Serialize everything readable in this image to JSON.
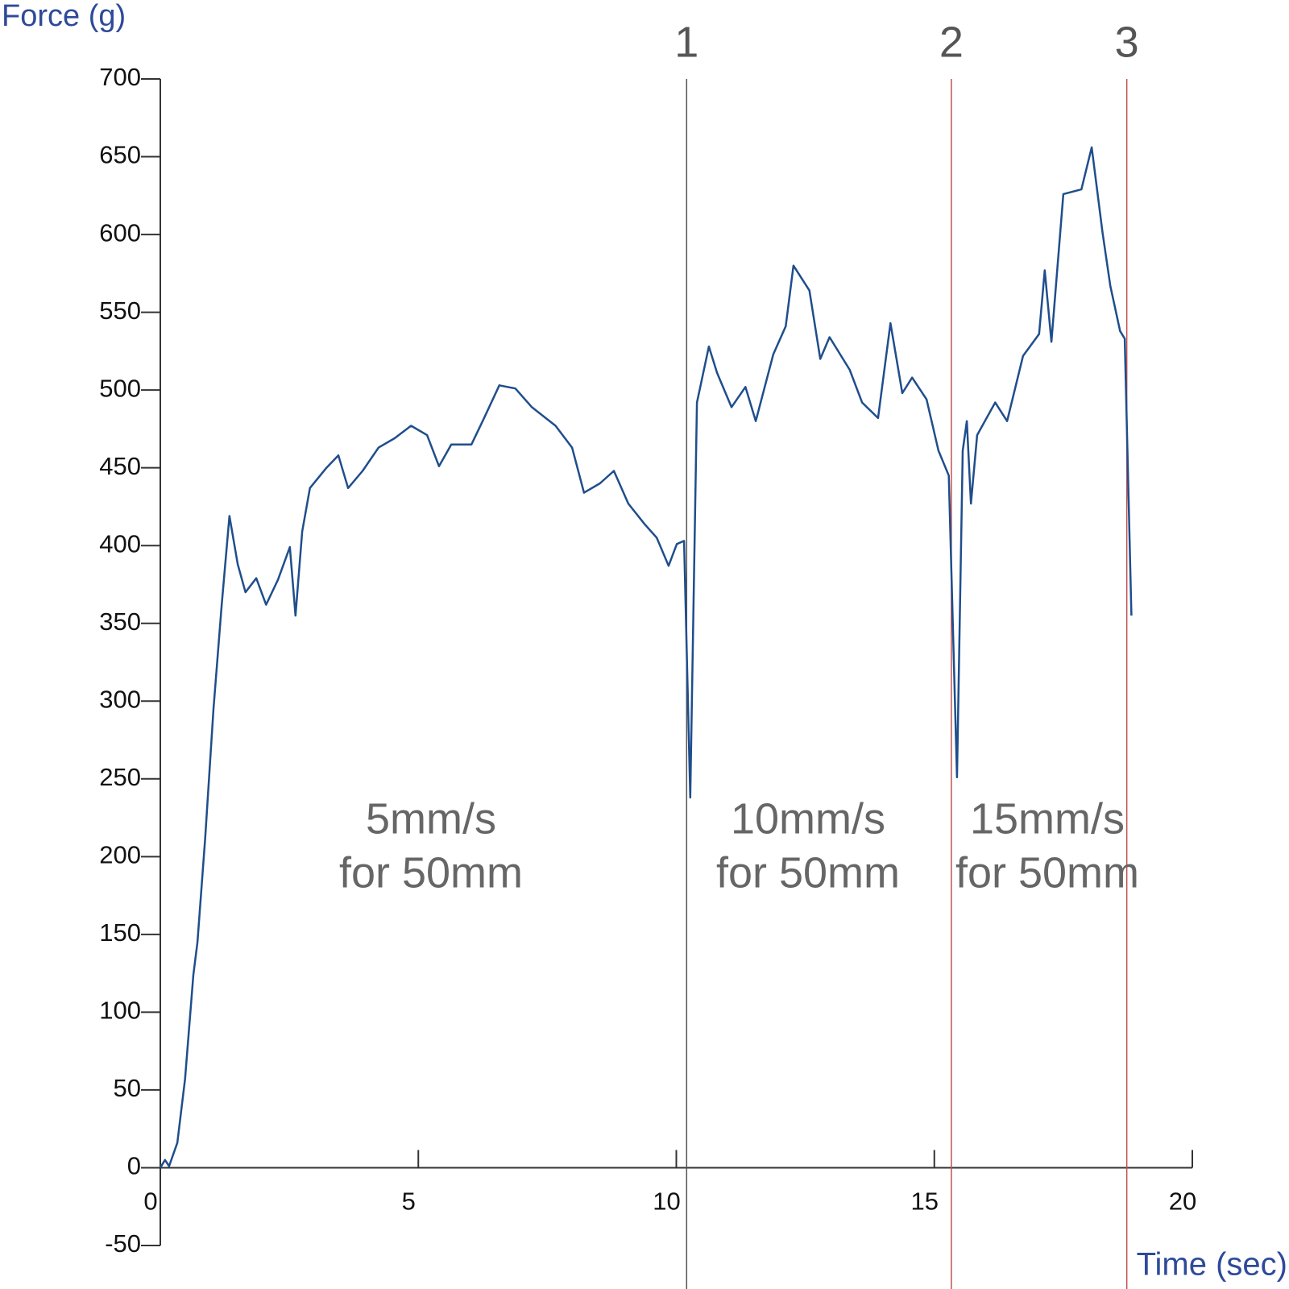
{
  "chart_data": {
    "type": "line",
    "xlabel": "Time (sec)",
    "ylabel": "Force (g)",
    "x": [
      0,
      0.09,
      0.17,
      0.33,
      0.48,
      0.64,
      0.72,
      0.87,
      1.03,
      1.19,
      1.34,
      1.5,
      1.65,
      1.86,
      2.05,
      2.28,
      2.51,
      2.62,
      2.75,
      2.9,
      3.22,
      3.45,
      3.64,
      3.92,
      4.23,
      4.54,
      4.86,
      5.17,
      5.4,
      5.64,
      6.03,
      6.26,
      6.57,
      6.88,
      7.2,
      7.66,
      7.98,
      8.21,
      8.52,
      8.79,
      9.07,
      9.38,
      9.62,
      9.85,
      10.01,
      10.15,
      10.27,
      10.4,
      10.63,
      10.79,
      11.07,
      11.34,
      11.54,
      11.88,
      12.12,
      12.27,
      12.58,
      12.79,
      12.97,
      13.36,
      13.6,
      13.91,
      14.15,
      14.38,
      14.57,
      14.85,
      15.08,
      15.28,
      15.44,
      15.55,
      15.63,
      15.71,
      15.83,
      16.18,
      16.41,
      16.72,
      17.03,
      17.14,
      17.27,
      17.5,
      17.85,
      18.05,
      18.26,
      18.41,
      18.6,
      18.69,
      18.82
    ],
    "series": [
      {
        "color": "#1f4e8c",
        "values": [
          0,
          5,
          1,
          16,
          57,
          124,
          145,
          212,
          295,
          362,
          419,
          388,
          370,
          379,
          362,
          378,
          399,
          355,
          409,
          437,
          450,
          458,
          437,
          448,
          463,
          469,
          477,
          471,
          451,
          465,
          465,
          481,
          503,
          501,
          489,
          477,
          463,
          434,
          440,
          448,
          427,
          414,
          405,
          387,
          401,
          403,
          238,
          492,
          528,
          511,
          489,
          502,
          480,
          523,
          541,
          580,
          564,
          520,
          534,
          513,
          492,
          482,
          543,
          498,
          508,
          494,
          461,
          445,
          251,
          461,
          480,
          427,
          471,
          492,
          480,
          522,
          536,
          577,
          531,
          626,
          629,
          656,
          601,
          567,
          538,
          533,
          355
        ]
      }
    ],
    "xlim": [
      0,
      20
    ],
    "xticks": [
      0,
      5,
      10,
      15,
      20
    ],
    "ylim": [
      -50,
      700
    ],
    "yticks": [
      -50,
      0,
      50,
      100,
      150,
      200,
      250,
      300,
      350,
      400,
      450,
      500,
      550,
      600,
      650,
      700
    ],
    "markers": [
      {
        "label": "1",
        "x": 10.2,
        "color": "#555555"
      },
      {
        "label": "2",
        "x": 15.33,
        "color": "#c0504d"
      },
      {
        "label": "3",
        "x": 18.73,
        "color": "#c0504d"
      }
    ],
    "annotations": [
      {
        "lines": [
          "5mm/s",
          "for 50mm"
        ]
      },
      {
        "lines": [
          "10mm/s",
          "for 50mm"
        ]
      },
      {
        "lines": [
          "15mm/s",
          "for 50mm"
        ]
      }
    ]
  }
}
